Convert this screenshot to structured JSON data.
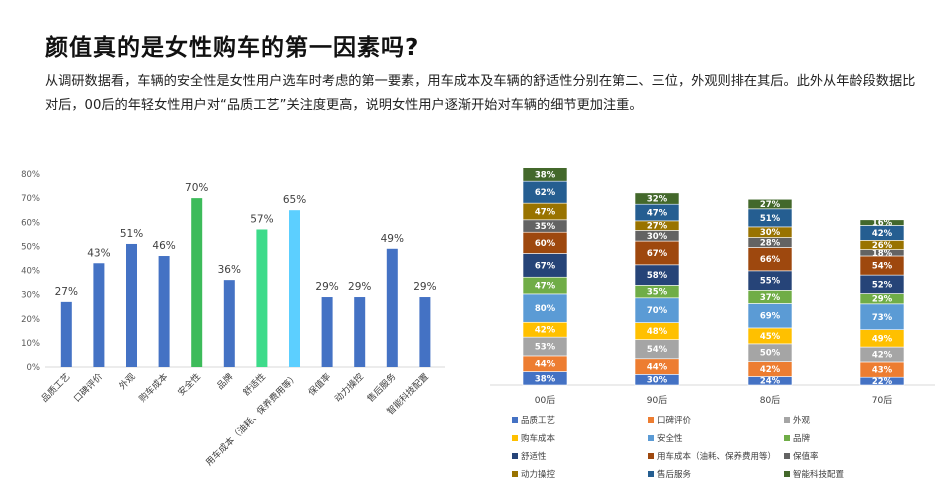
{
  "title": "颜值真的是女性购车的第一因素吗?",
  "description": "从调研数据看，车辆的安全性是女性用户选车时考虑的第一要素，用车成本及车辆的舒适性分别在第二、三位，外观则排在其后。此外从年龄段数据比对后，00后的年轻女性用户对“品质工艺”关注度更高，说明女性用户逐渐开始对车辆的细节更加注重。",
  "chart_data": [
    {
      "type": "bar",
      "categories": [
        "品质工艺",
        "口碑评价",
        "外观",
        "购车成本",
        "安全性",
        "品牌",
        "舒适性",
        "用车成本（油耗、保养费用等）",
        "保值率",
        "动力操控",
        "售后服务",
        "智能科技配置"
      ],
      "values": [
        27,
        43,
        51,
        46,
        70,
        36,
        57,
        65,
        29,
        29,
        49,
        29
      ],
      "value_labels": [
        "27%",
        "43%",
        "51%",
        "46%",
        "70%",
        "36%",
        "57%",
        "65%",
        "29%",
        "29%",
        "49%",
        "29%"
      ],
      "colors": [
        "#4472c4",
        "#4472c4",
        "#4472c4",
        "#4472c4",
        "#3dbb5a",
        "#4472c4",
        "#3ddb8a",
        "#5ccfff",
        "#4472c4",
        "#4472c4",
        "#4472c4",
        "#4472c4"
      ],
      "yticks": [
        "0%",
        "10%",
        "20%",
        "30%",
        "40%",
        "50%",
        "60%",
        "70%",
        "80%"
      ],
      "ylim": [
        0,
        80
      ]
    },
    {
      "type": "bar",
      "stacked": true,
      "categories": [
        "00后",
        "90后",
        "80后",
        "70后"
      ],
      "series": [
        {
          "name": "品质工艺",
          "color": "#4472c4",
          "values": [
            38,
            30,
            24,
            22
          ]
        },
        {
          "name": "口碑评价",
          "color": "#ed7d31",
          "values": [
            44,
            44,
            42,
            43
          ]
        },
        {
          "name": "外观",
          "color": "#a5a5a5",
          "values": [
            53,
            54,
            50,
            42
          ]
        },
        {
          "name": "购车成本",
          "color": "#ffc000",
          "values": [
            42,
            48,
            45,
            49
          ]
        },
        {
          "name": "安全性",
          "color": "#5b9bd5",
          "values": [
            80,
            70,
            69,
            73
          ]
        },
        {
          "name": "品牌",
          "color": "#70ad47",
          "values": [
            47,
            35,
            37,
            29
          ]
        },
        {
          "name": "舒适性",
          "color": "#264478",
          "values": [
            67,
            58,
            55,
            52
          ]
        },
        {
          "name": "用车成本（油耗、保养费用等）",
          "color": "#9e480e",
          "values": [
            60,
            67,
            66,
            54
          ]
        },
        {
          "name": "保值率",
          "color": "#636363",
          "values": [
            35,
            30,
            28,
            18
          ]
        },
        {
          "name": "动力操控",
          "color": "#997300",
          "values": [
            47,
            27,
            30,
            26
          ]
        },
        {
          "name": "售后服务",
          "color": "#255e91",
          "values": [
            62,
            47,
            51,
            42
          ]
        },
        {
          "name": "智能科技配置",
          "color": "#43682b",
          "values": [
            38,
            32,
            27,
            16
          ]
        }
      ],
      "legend_position": "bottom"
    }
  ]
}
